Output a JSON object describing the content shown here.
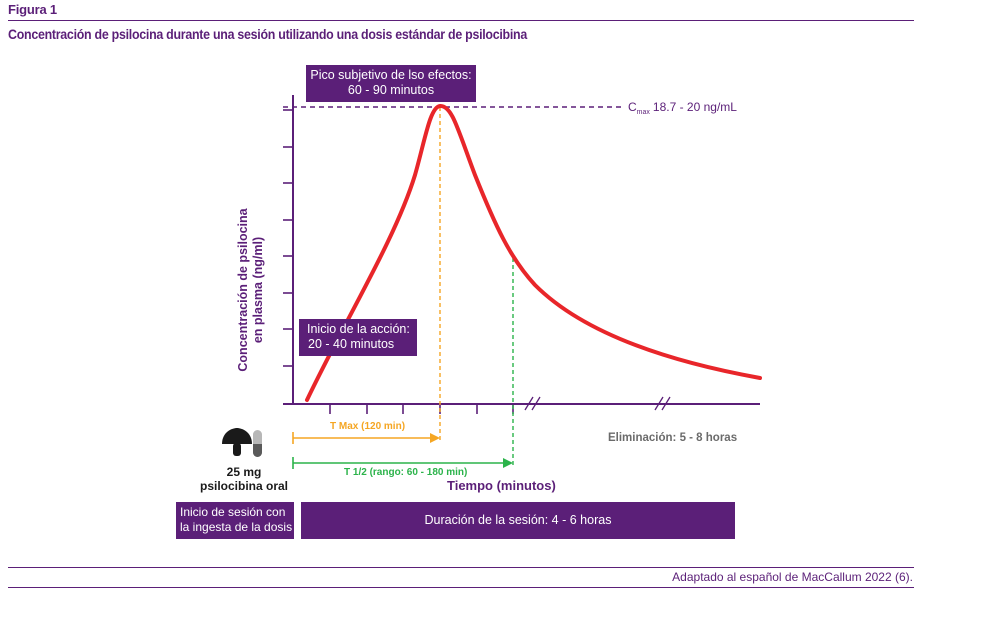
{
  "figure_label": "Figura 1",
  "title": "Concentración de psilocina durante una sesión utilizando una dosis estándar de psilocibina",
  "source": "Adaptado al español de MacCallum 2022 (6).",
  "colors": {
    "brand": "#5b1f78",
    "curve": "#e8262a",
    "tmax": "#f5a623",
    "thalf": "#2bb34a",
    "gray_text": "#6b6b6b"
  },
  "chart_data": {
    "type": "line",
    "ylabel_line1": "Concentración de psilocina",
    "ylabel_line2": "en plasma (ng/ml)",
    "xlabel": "Tiempo (minutos)",
    "cmax_label_prefix": "C",
    "cmax_label_sub": "max",
    "cmax_label_value": "18.7 - 20 ng/mL",
    "peak_box_line1": "Pico subjetivo de lso efectos:",
    "peak_box_line2": "60 - 90 minutos",
    "onset_box_line1": "Inicio de la acción:",
    "onset_box_line2": "20 - 40 minutos",
    "tmax_label": "T Max (120 min)",
    "thalf_label": "T 1/2 (rango: 60 - 180 min)",
    "elimination_label": "Eliminación: 5 - 8 horas",
    "dose_line1": "25 mg",
    "dose_line2": "psilocibina oral",
    "session_start_line1": "Inicio de sesión con",
    "session_start_line2": "la ingesta de la dosis",
    "session_duration": "Duración de la sesión: 4 - 6 horas",
    "tmax_minutes": 120,
    "grid": false
  }
}
